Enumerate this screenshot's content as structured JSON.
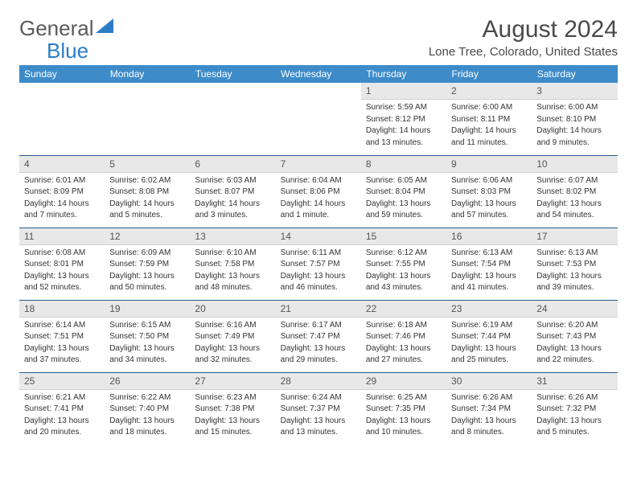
{
  "logo": {
    "general": "General",
    "blue": "Blue",
    "triangle_color": "#2d7dc4"
  },
  "title": "August 2024",
  "location": "Lone Tree, Colorado, United States",
  "header_bg": "#3d8bc9",
  "daynum_bg": "#e8e8e8",
  "border_color": "#2d5a8a",
  "weekdays": [
    "Sunday",
    "Monday",
    "Tuesday",
    "Wednesday",
    "Thursday",
    "Friday",
    "Saturday"
  ],
  "weeks": [
    [
      null,
      null,
      null,
      null,
      {
        "n": "1",
        "sr": "Sunrise: 5:59 AM",
        "ss": "Sunset: 8:12 PM",
        "d1": "Daylight: 14 hours",
        "d2": "and 13 minutes."
      },
      {
        "n": "2",
        "sr": "Sunrise: 6:00 AM",
        "ss": "Sunset: 8:11 PM",
        "d1": "Daylight: 14 hours",
        "d2": "and 11 minutes."
      },
      {
        "n": "3",
        "sr": "Sunrise: 6:00 AM",
        "ss": "Sunset: 8:10 PM",
        "d1": "Daylight: 14 hours",
        "d2": "and 9 minutes."
      }
    ],
    [
      {
        "n": "4",
        "sr": "Sunrise: 6:01 AM",
        "ss": "Sunset: 8:09 PM",
        "d1": "Daylight: 14 hours",
        "d2": "and 7 minutes."
      },
      {
        "n": "5",
        "sr": "Sunrise: 6:02 AM",
        "ss": "Sunset: 8:08 PM",
        "d1": "Daylight: 14 hours",
        "d2": "and 5 minutes."
      },
      {
        "n": "6",
        "sr": "Sunrise: 6:03 AM",
        "ss": "Sunset: 8:07 PM",
        "d1": "Daylight: 14 hours",
        "d2": "and 3 minutes."
      },
      {
        "n": "7",
        "sr": "Sunrise: 6:04 AM",
        "ss": "Sunset: 8:06 PM",
        "d1": "Daylight: 14 hours",
        "d2": "and 1 minute."
      },
      {
        "n": "8",
        "sr": "Sunrise: 6:05 AM",
        "ss": "Sunset: 8:04 PM",
        "d1": "Daylight: 13 hours",
        "d2": "and 59 minutes."
      },
      {
        "n": "9",
        "sr": "Sunrise: 6:06 AM",
        "ss": "Sunset: 8:03 PM",
        "d1": "Daylight: 13 hours",
        "d2": "and 57 minutes."
      },
      {
        "n": "10",
        "sr": "Sunrise: 6:07 AM",
        "ss": "Sunset: 8:02 PM",
        "d1": "Daylight: 13 hours",
        "d2": "and 54 minutes."
      }
    ],
    [
      {
        "n": "11",
        "sr": "Sunrise: 6:08 AM",
        "ss": "Sunset: 8:01 PM",
        "d1": "Daylight: 13 hours",
        "d2": "and 52 minutes."
      },
      {
        "n": "12",
        "sr": "Sunrise: 6:09 AM",
        "ss": "Sunset: 7:59 PM",
        "d1": "Daylight: 13 hours",
        "d2": "and 50 minutes."
      },
      {
        "n": "13",
        "sr": "Sunrise: 6:10 AM",
        "ss": "Sunset: 7:58 PM",
        "d1": "Daylight: 13 hours",
        "d2": "and 48 minutes."
      },
      {
        "n": "14",
        "sr": "Sunrise: 6:11 AM",
        "ss": "Sunset: 7:57 PM",
        "d1": "Daylight: 13 hours",
        "d2": "and 46 minutes."
      },
      {
        "n": "15",
        "sr": "Sunrise: 6:12 AM",
        "ss": "Sunset: 7:55 PM",
        "d1": "Daylight: 13 hours",
        "d2": "and 43 minutes."
      },
      {
        "n": "16",
        "sr": "Sunrise: 6:13 AM",
        "ss": "Sunset: 7:54 PM",
        "d1": "Daylight: 13 hours",
        "d2": "and 41 minutes."
      },
      {
        "n": "17",
        "sr": "Sunrise: 6:13 AM",
        "ss": "Sunset: 7:53 PM",
        "d1": "Daylight: 13 hours",
        "d2": "and 39 minutes."
      }
    ],
    [
      {
        "n": "18",
        "sr": "Sunrise: 6:14 AM",
        "ss": "Sunset: 7:51 PM",
        "d1": "Daylight: 13 hours",
        "d2": "and 37 minutes."
      },
      {
        "n": "19",
        "sr": "Sunrise: 6:15 AM",
        "ss": "Sunset: 7:50 PM",
        "d1": "Daylight: 13 hours",
        "d2": "and 34 minutes."
      },
      {
        "n": "20",
        "sr": "Sunrise: 6:16 AM",
        "ss": "Sunset: 7:49 PM",
        "d1": "Daylight: 13 hours",
        "d2": "and 32 minutes."
      },
      {
        "n": "21",
        "sr": "Sunrise: 6:17 AM",
        "ss": "Sunset: 7:47 PM",
        "d1": "Daylight: 13 hours",
        "d2": "and 29 minutes."
      },
      {
        "n": "22",
        "sr": "Sunrise: 6:18 AM",
        "ss": "Sunset: 7:46 PM",
        "d1": "Daylight: 13 hours",
        "d2": "and 27 minutes."
      },
      {
        "n": "23",
        "sr": "Sunrise: 6:19 AM",
        "ss": "Sunset: 7:44 PM",
        "d1": "Daylight: 13 hours",
        "d2": "and 25 minutes."
      },
      {
        "n": "24",
        "sr": "Sunrise: 6:20 AM",
        "ss": "Sunset: 7:43 PM",
        "d1": "Daylight: 13 hours",
        "d2": "and 22 minutes."
      }
    ],
    [
      {
        "n": "25",
        "sr": "Sunrise: 6:21 AM",
        "ss": "Sunset: 7:41 PM",
        "d1": "Daylight: 13 hours",
        "d2": "and 20 minutes."
      },
      {
        "n": "26",
        "sr": "Sunrise: 6:22 AM",
        "ss": "Sunset: 7:40 PM",
        "d1": "Daylight: 13 hours",
        "d2": "and 18 minutes."
      },
      {
        "n": "27",
        "sr": "Sunrise: 6:23 AM",
        "ss": "Sunset: 7:38 PM",
        "d1": "Daylight: 13 hours",
        "d2": "and 15 minutes."
      },
      {
        "n": "28",
        "sr": "Sunrise: 6:24 AM",
        "ss": "Sunset: 7:37 PM",
        "d1": "Daylight: 13 hours",
        "d2": "and 13 minutes."
      },
      {
        "n": "29",
        "sr": "Sunrise: 6:25 AM",
        "ss": "Sunset: 7:35 PM",
        "d1": "Daylight: 13 hours",
        "d2": "and 10 minutes."
      },
      {
        "n": "30",
        "sr": "Sunrise: 6:26 AM",
        "ss": "Sunset: 7:34 PM",
        "d1": "Daylight: 13 hours",
        "d2": "and 8 minutes."
      },
      {
        "n": "31",
        "sr": "Sunrise: 6:26 AM",
        "ss": "Sunset: 7:32 PM",
        "d1": "Daylight: 13 hours",
        "d2": "and 5 minutes."
      }
    ]
  ]
}
